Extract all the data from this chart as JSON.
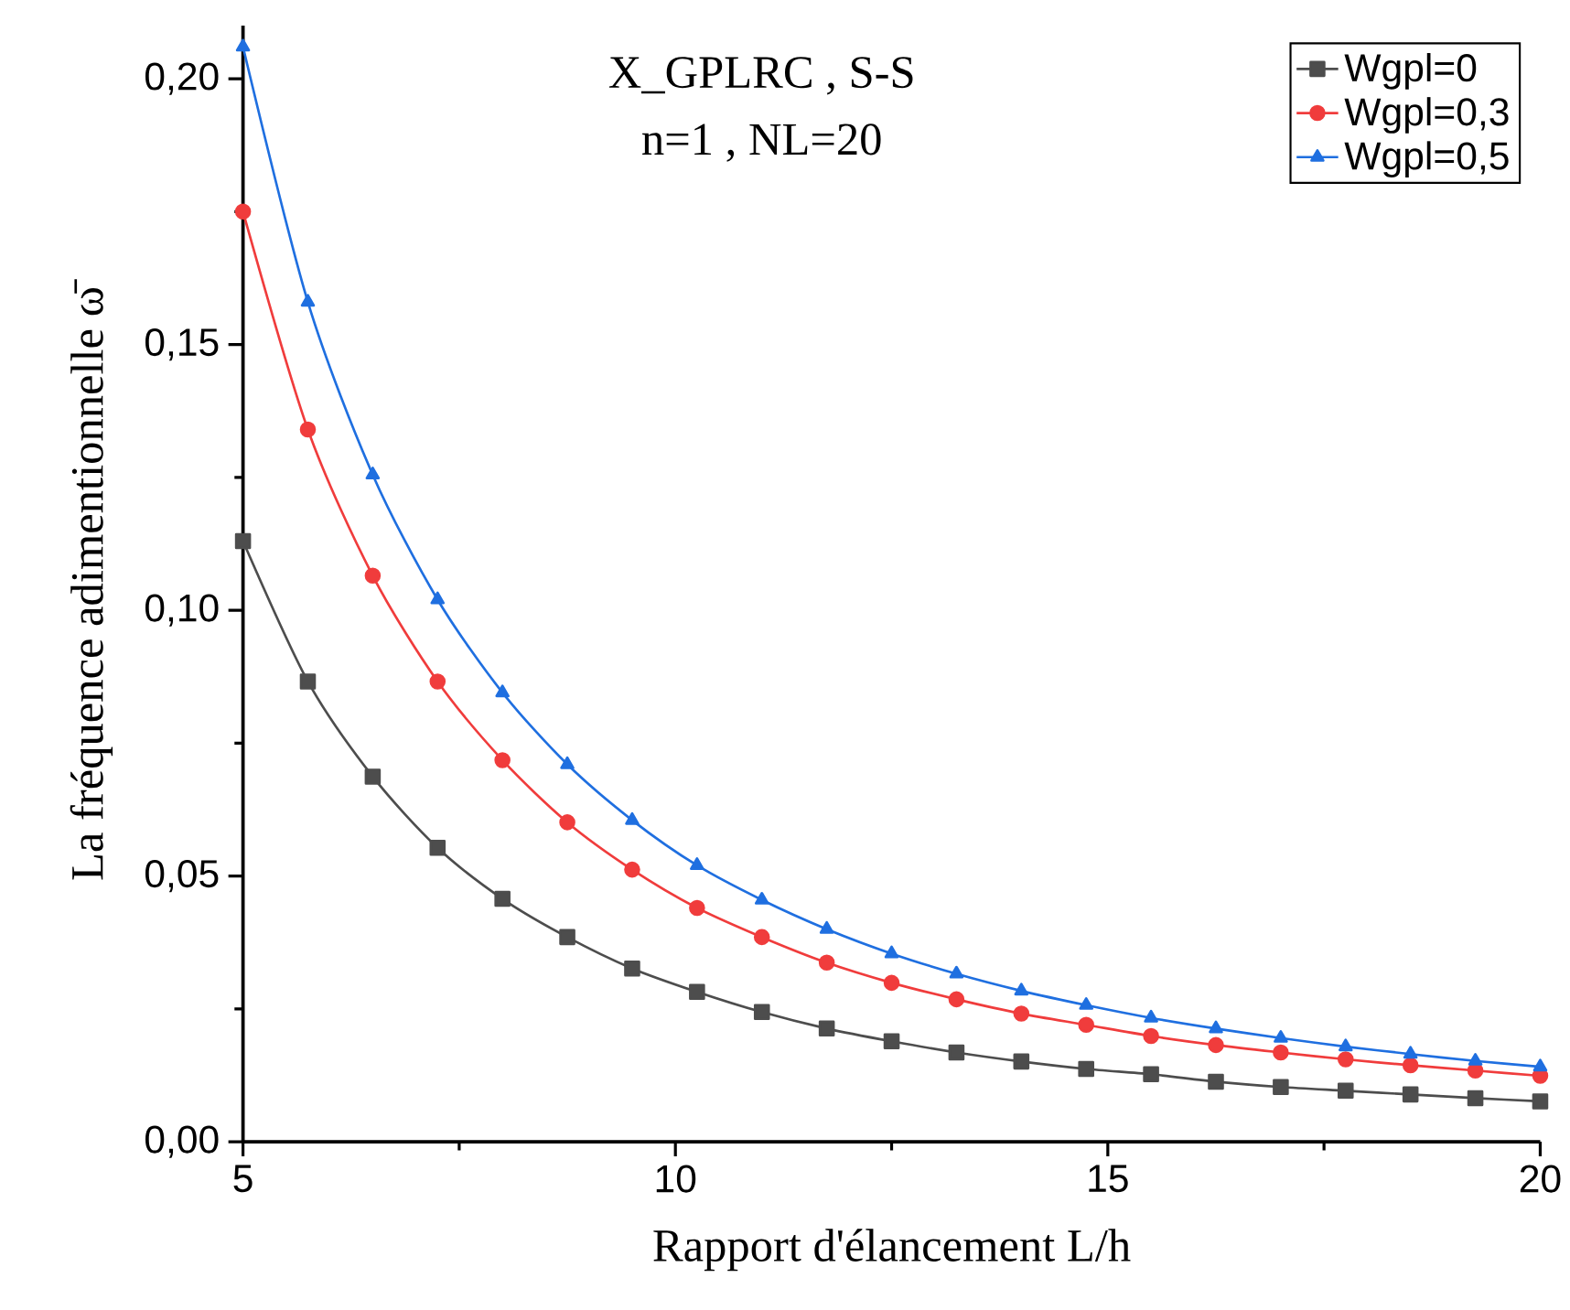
{
  "chart_data": {
    "type": "line",
    "xlabel": "Rapport d'élancement L/h",
    "ylabel": "La fréquence adimentionnelle ω̄",
    "annotations": [
      "X_GPLRC , S-S",
      "n=1 , NL=20"
    ],
    "x": [
      5,
      5.75,
      6.5,
      7.25,
      8,
      8.75,
      9.5,
      10.25,
      11,
      11.75,
      12.5,
      13.25,
      14,
      14.75,
      15.5,
      16.25,
      17,
      17.75,
      18.5,
      19.25,
      20
    ],
    "series": [
      {
        "name": "Wgpl=0",
        "color": "#4d4d4d",
        "marker": "square",
        "values": [
          0.113,
          0.0866,
          0.0687,
          0.0553,
          0.0457,
          0.0385,
          0.0326,
          0.0282,
          0.0244,
          0.0213,
          0.0189,
          0.0168,
          0.0151,
          0.0137,
          0.0127,
          0.0113,
          0.0103,
          0.0096,
          0.0089,
          0.0082,
          0.0076
        ]
      },
      {
        "name": "Wgpl=0,3",
        "color": "#f03c3c",
        "marker": "circle",
        "values": [
          0.175,
          0.134,
          0.1065,
          0.0866,
          0.0718,
          0.0601,
          0.0512,
          0.044,
          0.0385,
          0.0337,
          0.0299,
          0.0268,
          0.0241,
          0.022,
          0.0199,
          0.0182,
          0.0168,
          0.0155,
          0.0144,
          0.0134,
          0.0124
        ]
      },
      {
        "name": "Wgpl=0,5",
        "color": "#1f6fe0",
        "marker": "triangle",
        "values": [
          0.206,
          0.158,
          0.1255,
          0.102,
          0.0845,
          0.071,
          0.0605,
          0.052,
          0.0455,
          0.04,
          0.0354,
          0.0316,
          0.0284,
          0.0257,
          0.0233,
          0.0213,
          0.0195,
          0.0179,
          0.0165,
          0.0152,
          0.0141
        ]
      }
    ],
    "xlim": [
      5,
      20
    ],
    "ylim": [
      0,
      0.21
    ],
    "xticks": [
      5,
      10,
      15,
      20
    ],
    "yticks": [
      {
        "value": 0,
        "label": "0,00"
      },
      {
        "value": 0.05,
        "label": "0,05"
      },
      {
        "value": 0.1,
        "label": "0,10"
      },
      {
        "value": 0.15,
        "label": "0,15"
      },
      {
        "value": 0.2,
        "label": "0,20"
      }
    ],
    "grid": false,
    "legend": "top right",
    "line_style": "solid"
  }
}
